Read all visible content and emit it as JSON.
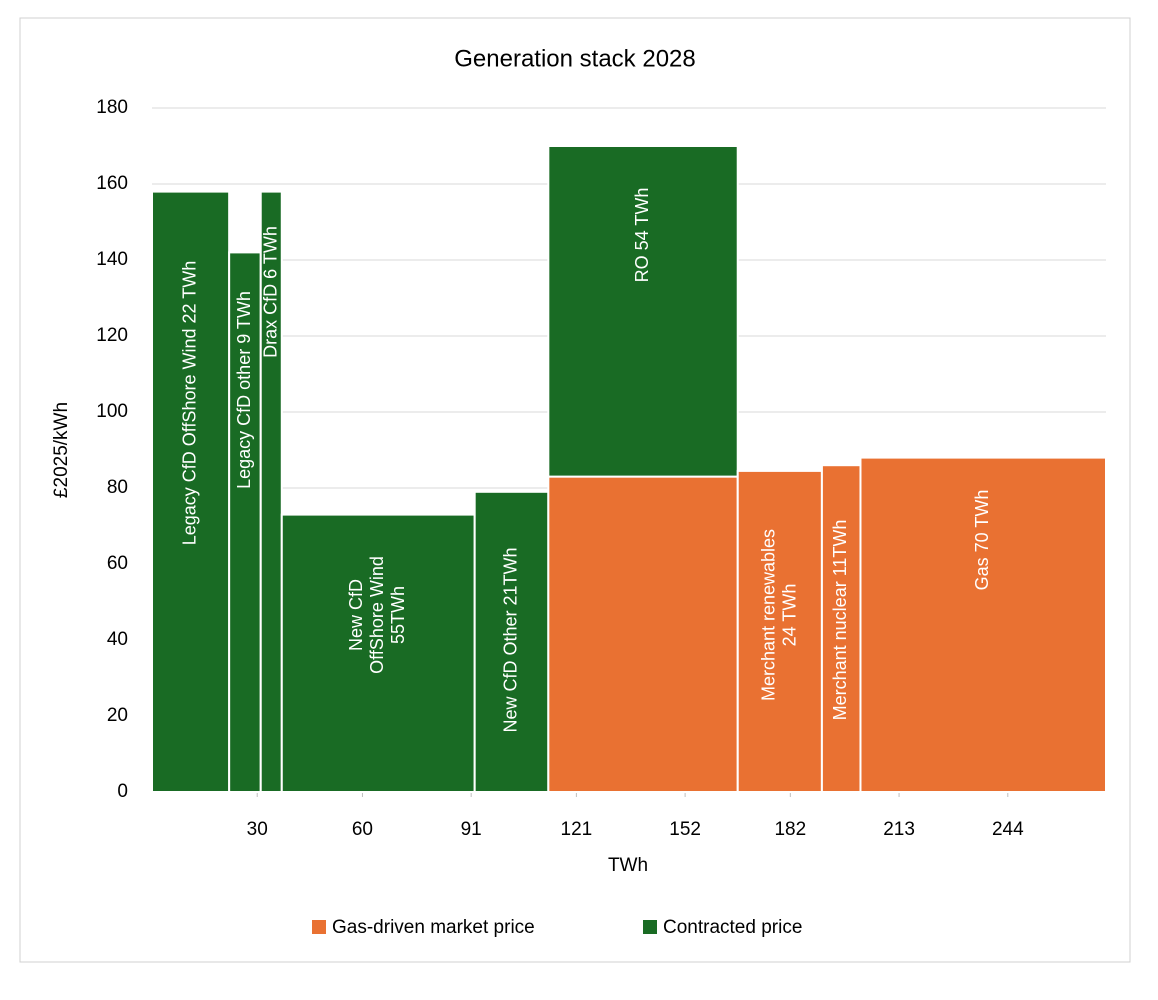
{
  "chart_data": {
    "type": "bar",
    "title": "Generation stack 2028",
    "x_label": "TWh",
    "y_label": "£2025/kWh",
    "categories": [
      [
        "Legacy CfD OffShore Wind  22 TWh"
      ],
      [
        "Legacy CfD other  9 TWh"
      ],
      [
        "Drax CfD  6 TWh"
      ],
      [
        "New CfD",
        "OffShore Wind",
        "55TWh"
      ],
      [
        "New CfD Other  21TWh"
      ],
      [
        "RO  54 TWh"
      ],
      [
        "Merchant renewables",
        "24 TWh"
      ],
      [
        "Merchant nuclear 11TWh"
      ],
      [
        "Gas  70 TWh"
      ]
    ],
    "widths": [
      22,
      9,
      6,
      55,
      21,
      54,
      24,
      11,
      70
    ],
    "series": [
      {
        "name": "Gas-driven market price",
        "color": "#e97132",
        "values": [
          null,
          null,
          null,
          null,
          null,
          83,
          84.5,
          86,
          88
        ]
      },
      {
        "name": "Contracted price",
        "color": "#196b24",
        "values": [
          158,
          142,
          158,
          73,
          79,
          87,
          null,
          null,
          null
        ]
      }
    ],
    "stacked": true,
    "xlim": [
      0,
      272
    ],
    "xticks": [
      30,
      60,
      91,
      121,
      152,
      182,
      213,
      244
    ],
    "ylim": [
      0,
      180
    ],
    "yticks": [
      0,
      20,
      40,
      60,
      80,
      100,
      120,
      140,
      160,
      180
    ],
    "grid": true,
    "legend": "bottom"
  }
}
